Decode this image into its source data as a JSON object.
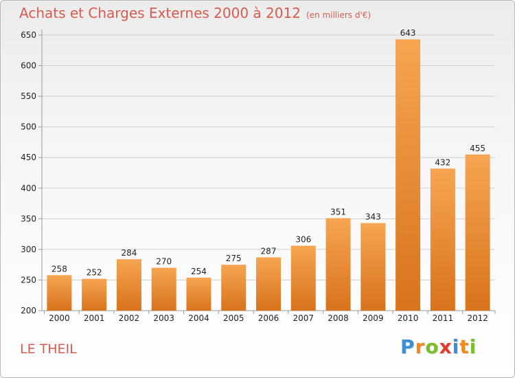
{
  "header": {
    "title": "Achats et Charges Externes 2000 à 2012",
    "subtitle": "(en milliers d'€)"
  },
  "footer": {
    "commune": "LE THEIL",
    "logo": {
      "letters": [
        {
          "char": "P",
          "color": "#3b8fd6"
        },
        {
          "char": "r",
          "color": "#f08a1c"
        },
        {
          "char": "o",
          "color": "#7cbd2a"
        },
        {
          "char": "x",
          "color": "#e23b2e"
        },
        {
          "char": "i",
          "color": "#3b8fd6"
        },
        {
          "char": "t",
          "color": "#f08a1c"
        },
        {
          "char": "i",
          "color": "#7cbd2a"
        }
      ]
    }
  },
  "colors": {
    "title": "#d75b4e",
    "bar_light": "#f6a552",
    "bar_dark": "#d8731c",
    "grid": "#d0d0d0",
    "axis": "#9a9a9a"
  },
  "chart_data": {
    "type": "bar",
    "title": "Achats et Charges Externes 2000 à 2012",
    "subtitle": "(en milliers d'€)",
    "xlabel": "",
    "ylabel": "",
    "categories": [
      "2000",
      "2001",
      "2002",
      "2003",
      "2004",
      "2005",
      "2006",
      "2007",
      "2008",
      "2009",
      "2010",
      "2011",
      "2012"
    ],
    "values": [
      258,
      252,
      284,
      270,
      254,
      275,
      287,
      306,
      351,
      343,
      643,
      432,
      455
    ],
    "ylim": [
      200,
      650
    ],
    "yticks": [
      200,
      250,
      300,
      350,
      400,
      450,
      500,
      550,
      600,
      650
    ],
    "grid": "horizontal",
    "legend": "none"
  }
}
